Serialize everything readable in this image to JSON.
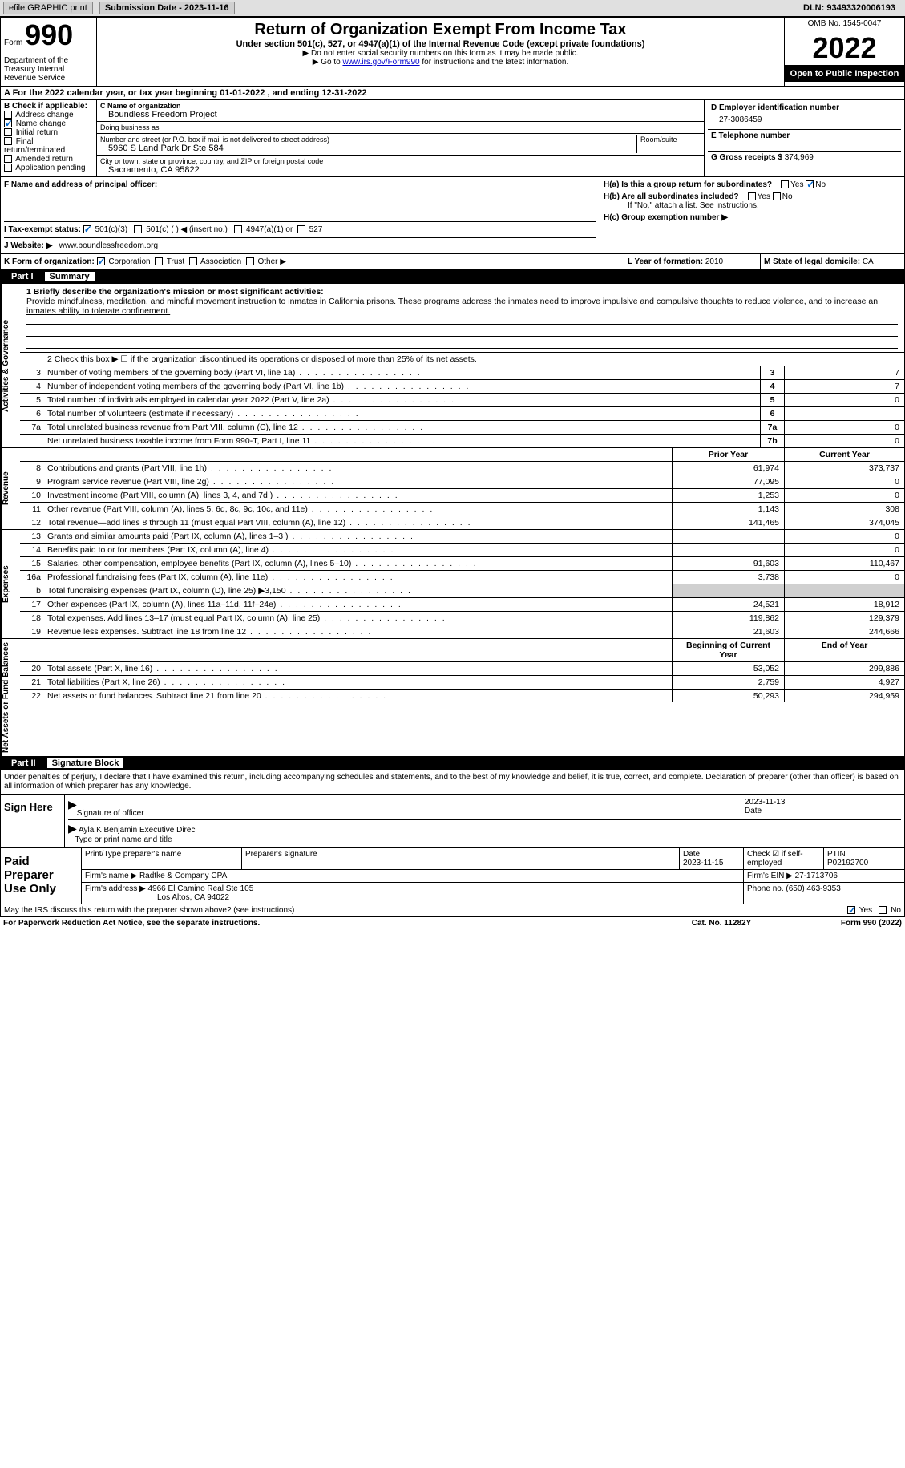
{
  "header_bar": {
    "efile": "efile GRAPHIC print",
    "sub_date_label": "Submission Date - 2023-11-16",
    "dln": "DLN: 93493320006193"
  },
  "form_header": {
    "form_word": "Form",
    "form_num": "990",
    "dept": "Department of the Treasury Internal Revenue Service",
    "title": "Return of Organization Exempt From Income Tax",
    "sub": "Under section 501(c), 527, or 4947(a)(1) of the Internal Revenue Code (except private foundations)",
    "note1": "▶ Do not enter social security numbers on this form as it may be made public.",
    "note2_pre": "▶ Go to ",
    "note2_link": "www.irs.gov/Form990",
    "note2_post": " for instructions and the latest information.",
    "omb": "OMB No. 1545-0047",
    "year": "2022",
    "open": "Open to Public Inspection"
  },
  "section_a": "A For the 2022 calendar year, or tax year beginning 01-01-2022   , and ending 12-31-2022",
  "section_b": {
    "label": "B Check if applicable:",
    "items": [
      "Address change",
      "Name change",
      "Initial return",
      "Final return/terminated",
      "Amended return",
      "Application pending"
    ],
    "checked": [
      false,
      true,
      false,
      false,
      false,
      false
    ]
  },
  "section_c": {
    "name_label": "C Name of organization",
    "name": "Boundless Freedom Project",
    "dba_label": "Doing business as",
    "dba": "",
    "addr_label": "Number and street (or P.O. box if mail is not delivered to street address)",
    "addr": "5960 S Land Park Dr Ste 584",
    "room_label": "Room/suite",
    "city_label": "City or town, state or province, country, and ZIP or foreign postal code",
    "city": "Sacramento, CA  95822"
  },
  "section_d": {
    "ein_label": "D Employer identification number",
    "ein": "27-3086459",
    "phone_label": "E Telephone number",
    "phone": "",
    "gross_label": "G Gross receipts $",
    "gross": "374,969"
  },
  "section_f": {
    "label": "F  Name and address of principal officer:",
    "val": ""
  },
  "section_h": {
    "ha": "H(a)  Is this a group return for subordinates?",
    "ha_yes": "Yes",
    "ha_no": "No",
    "hb": "H(b)  Are all subordinates included?",
    "hb_yes": "Yes",
    "hb_no": "No",
    "hb_note": "If \"No,\" attach a list. See instructions.",
    "hc": "H(c)  Group exemption number ▶"
  },
  "section_i": {
    "label": "I   Tax-exempt status:",
    "opts": [
      "501(c)(3)",
      "501(c) (  ) ◀ (insert no.)",
      "4947(a)(1) or",
      "527"
    ]
  },
  "section_j": {
    "label": "J   Website: ▶",
    "val": "www.boundlessfreedom.org"
  },
  "section_k": {
    "label": "K Form of organization:",
    "opts": [
      "Corporation",
      "Trust",
      "Association",
      "Other ▶"
    ]
  },
  "section_l": {
    "label": "L Year of formation:",
    "val": "2010"
  },
  "section_m": {
    "label": "M State of legal domicile:",
    "val": "CA"
  },
  "part1": {
    "num": "Part I",
    "title": "Summary"
  },
  "mission": {
    "label": "1   Briefly describe the organization's mission or most significant activities:",
    "text": "Provide mindfulness, meditation, and mindful movement instruction to inmates in California prisons. These programs address the inmates need to improve impulsive and compulsive thoughts to reduce violence, and to increase an inmates ability to tolerate confinement."
  },
  "line2": "2   Check this box ▶ ☐  if the organization discontinued its operations or disposed of more than 25% of its net assets.",
  "vert_labels": {
    "gov": "Activities & Governance",
    "rev": "Revenue",
    "exp": "Expenses",
    "net": "Net Assets or Fund Balances"
  },
  "gov_rows": [
    {
      "n": "3",
      "d": "Number of voting members of the governing body (Part VI, line 1a)",
      "b": "3",
      "v": "7"
    },
    {
      "n": "4",
      "d": "Number of independent voting members of the governing body (Part VI, line 1b)",
      "b": "4",
      "v": "7"
    },
    {
      "n": "5",
      "d": "Total number of individuals employed in calendar year 2022 (Part V, line 2a)",
      "b": "5",
      "v": "0"
    },
    {
      "n": "6",
      "d": "Total number of volunteers (estimate if necessary)",
      "b": "6",
      "v": ""
    },
    {
      "n": "7a",
      "d": "Total unrelated business revenue from Part VIII, column (C), line 12",
      "b": "7a",
      "v": "0"
    },
    {
      "n": "",
      "d": "Net unrelated business taxable income from Form 990-T, Part I, line 11",
      "b": "7b",
      "v": "0"
    }
  ],
  "rev_head": {
    "py": "Prior Year",
    "cy": "Current Year"
  },
  "rev_rows": [
    {
      "n": "8",
      "d": "Contributions and grants (Part VIII, line 1h)",
      "py": "61,974",
      "cy": "373,737"
    },
    {
      "n": "9",
      "d": "Program service revenue (Part VIII, line 2g)",
      "py": "77,095",
      "cy": "0"
    },
    {
      "n": "10",
      "d": "Investment income (Part VIII, column (A), lines 3, 4, and 7d )",
      "py": "1,253",
      "cy": "0"
    },
    {
      "n": "11",
      "d": "Other revenue (Part VIII, column (A), lines 5, 6d, 8c, 9c, 10c, and 11e)",
      "py": "1,143",
      "cy": "308"
    },
    {
      "n": "12",
      "d": "Total revenue—add lines 8 through 11 (must equal Part VIII, column (A), line 12)",
      "py": "141,465",
      "cy": "374,045"
    }
  ],
  "exp_rows": [
    {
      "n": "13",
      "d": "Grants and similar amounts paid (Part IX, column (A), lines 1–3 )",
      "py": "",
      "cy": "0"
    },
    {
      "n": "14",
      "d": "Benefits paid to or for members (Part IX, column (A), line 4)",
      "py": "",
      "cy": "0"
    },
    {
      "n": "15",
      "d": "Salaries, other compensation, employee benefits (Part IX, column (A), lines 5–10)",
      "py": "91,603",
      "cy": "110,467"
    },
    {
      "n": "16a",
      "d": "Professional fundraising fees (Part IX, column (A), line 11e)",
      "py": "3,738",
      "cy": "0"
    },
    {
      "n": "b",
      "d": "Total fundraising expenses (Part IX, column (D), line 25) ▶3,150",
      "py": "shade",
      "cy": "shade"
    },
    {
      "n": "17",
      "d": "Other expenses (Part IX, column (A), lines 11a–11d, 11f–24e)",
      "py": "24,521",
      "cy": "18,912"
    },
    {
      "n": "18",
      "d": "Total expenses. Add lines 13–17 (must equal Part IX, column (A), line 25)",
      "py": "119,862",
      "cy": "129,379"
    },
    {
      "n": "19",
      "d": "Revenue less expenses. Subtract line 18 from line 12",
      "py": "21,603",
      "cy": "244,666"
    }
  ],
  "net_head": {
    "py": "Beginning of Current Year",
    "cy": "End of Year"
  },
  "net_rows": [
    {
      "n": "20",
      "d": "Total assets (Part X, line 16)",
      "py": "53,052",
      "cy": "299,886"
    },
    {
      "n": "21",
      "d": "Total liabilities (Part X, line 26)",
      "py": "2,759",
      "cy": "4,927"
    },
    {
      "n": "22",
      "d": "Net assets or fund balances. Subtract line 21 from line 20",
      "py": "50,293",
      "cy": "294,959"
    }
  ],
  "part2": {
    "num": "Part II",
    "title": "Signature Block"
  },
  "sig": {
    "decl": "Under penalties of perjury, I declare that I have examined this return, including accompanying schedules and statements, and to the best of my knowledge and belief, it is true, correct, and complete. Declaration of preparer (other than officer) is based on all information of which preparer has any knowledge.",
    "sign_here": "Sign Here",
    "sig_off": "Signature of officer",
    "date": "Date",
    "date_val": "2023-11-13",
    "name": "Ayla K Benjamin  Executive Direc",
    "name_label": "Type or print name and title"
  },
  "prep": {
    "label": "Paid Preparer Use Only",
    "print_name": "Print/Type preparer's name",
    "prep_sig": "Preparer's signature",
    "date": "Date",
    "date_val": "2023-11-15",
    "check": "Check ☑ if self-employed",
    "ptin": "PTIN",
    "ptin_val": "P02192700",
    "firm_name": "Firm's name    ▶ Radtke & Company CPA",
    "firm_ein": "Firm's EIN ▶ 27-1713706",
    "firm_addr": "Firm's address ▶ 4966 El Camino Real Ste 105",
    "firm_city": "Los Altos, CA  94022",
    "phone": "Phone no. (650) 463-9353"
  },
  "footer": {
    "may": "May the IRS discuss this return with the preparer shown above? (see instructions)",
    "yes": "Yes",
    "no": "No",
    "pra": "For Paperwork Reduction Act Notice, see the separate instructions.",
    "cat": "Cat. No. 11282Y",
    "form": "Form 990 (2022)"
  }
}
